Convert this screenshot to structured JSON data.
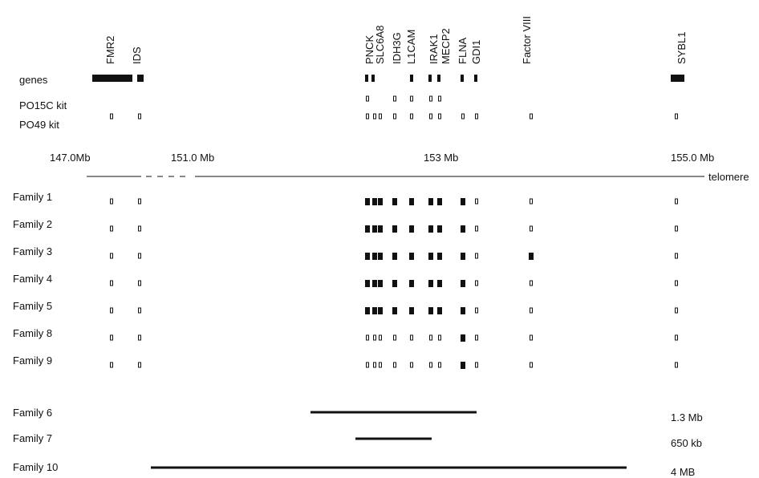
{
  "colors": {
    "ink": "#111111",
    "background": "#ffffff"
  },
  "gene_names": [
    "FMR2",
    "IDS",
    "PNCK",
    "SLC6A8",
    "IDH3G",
    "L1CAM",
    "IRAK1",
    "MECP2",
    "FLNA",
    "GDI1",
    "Factor VIII",
    "SYBL1"
  ],
  "row_labels": {
    "genes": "genes",
    "po15c": "PO15C kit",
    "po49": "PO49 kit"
  },
  "axis": {
    "ticks": [
      "147.0Mb",
      "151.0 Mb",
      "153 Mb",
      "155.0 Mb"
    ],
    "end_label": "telomere"
  },
  "marker_columns": [
    "FMR2",
    "IDS",
    "PNCK",
    "SLC6A8a",
    "SLC6A8b",
    "IDH3G",
    "L1CAM",
    "IRAK1",
    "MECP2",
    "FLNA",
    "GDI1",
    "Factor VIII",
    "SYBL1"
  ],
  "po15c_markers": [
    "PNCK",
    "IDH3G",
    "L1CAM",
    "IRAK1",
    "MECP2"
  ],
  "po49_markers": [
    "FMR2",
    "IDS",
    "PNCK",
    "SLC6A8a",
    "SLC6A8b",
    "IDH3G",
    "L1CAM",
    "IRAK1",
    "MECP2",
    "FLNA",
    "GDI1",
    "Factor VIII",
    "SYBL1"
  ],
  "families": [
    {
      "label": "Family 1",
      "filled": [
        "PNCK",
        "SLC6A8a",
        "SLC6A8b",
        "IDH3G",
        "L1CAM",
        "IRAK1",
        "MECP2",
        "FLNA"
      ]
    },
    {
      "label": "Family 2",
      "filled": [
        "PNCK",
        "SLC6A8a",
        "SLC6A8b",
        "IDH3G",
        "L1CAM",
        "IRAK1",
        "MECP2",
        "FLNA"
      ]
    },
    {
      "label": "Family 3",
      "filled": [
        "PNCK",
        "SLC6A8a",
        "SLC6A8b",
        "IDH3G",
        "L1CAM",
        "IRAK1",
        "MECP2",
        "FLNA",
        "Factor VIII"
      ]
    },
    {
      "label": "Family 4",
      "filled": [
        "PNCK",
        "SLC6A8a",
        "SLC6A8b",
        "IDH3G",
        "L1CAM",
        "IRAK1",
        "MECP2",
        "FLNA"
      ]
    },
    {
      "label": "Family 5",
      "filled": [
        "PNCK",
        "SLC6A8a",
        "SLC6A8b",
        "IDH3G",
        "L1CAM",
        "IRAK1",
        "MECP2",
        "FLNA"
      ]
    },
    {
      "label": "Family 8",
      "filled": [
        "FLNA"
      ]
    },
    {
      "label": "Family 9",
      "filled": [
        "FLNA"
      ]
    }
  ],
  "deletions": [
    {
      "label": "Family 6",
      "size": "1.3 Mb"
    },
    {
      "label": "Family 7",
      "size": "650 kb"
    },
    {
      "label": "Family 10",
      "size": "4 MB"
    }
  ]
}
